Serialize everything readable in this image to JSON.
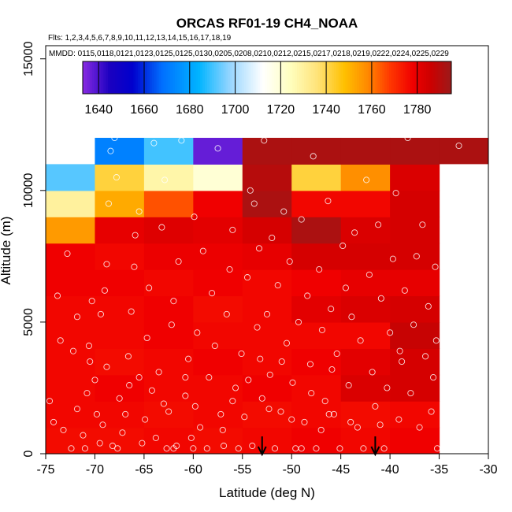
{
  "chart_data": {
    "type": "heatmap",
    "title": "ORCAS RF01-19 CH4_NOAA",
    "flights_line": "Flts: 1,2,3,4,5,6,7,8,9,10,11,12,13,14,15,16,17,18,19",
    "mmdd_line": "MMDD: 0115,0118,0121,0123,0125,0125,0130,0205,0208,0210,0212,0215,0217,0218,0219,0222,0224,0225,0229",
    "xlabel": "Latitude (deg N)",
    "ylabel": "Altitude (m)",
    "xlim": [
      -75,
      -30
    ],
    "ylim": [
      0,
      15500
    ],
    "x_ticks": [
      -75,
      -70,
      -65,
      -60,
      -55,
      -50,
      -45,
      -40,
      -35,
      -30
    ],
    "y_ticks": [
      0,
      5000,
      10000,
      15000
    ],
    "colorbar": {
      "range": [
        1633,
        1795
      ],
      "ticks": [
        1640,
        1660,
        1680,
        1700,
        1720,
        1740,
        1760,
        1780
      ],
      "stops": [
        {
          "v": 1633,
          "c": "#8a2be2"
        },
        {
          "v": 1645,
          "c": "#1a00c0"
        },
        {
          "v": 1655,
          "c": "#0000cd"
        },
        {
          "v": 1668,
          "c": "#0070ff"
        },
        {
          "v": 1684,
          "c": "#00b4ff"
        },
        {
          "v": 1698,
          "c": "#99d6ff"
        },
        {
          "v": 1712,
          "c": "#ffffff"
        },
        {
          "v": 1724,
          "c": "#ffffc0"
        },
        {
          "v": 1736,
          "c": "#ffe37a"
        },
        {
          "v": 1748,
          "c": "#ffc000"
        },
        {
          "v": 1758,
          "c": "#ff8a00"
        },
        {
          "v": 1768,
          "c": "#ff3800"
        },
        {
          "v": 1778,
          "c": "#f00000"
        },
        {
          "v": 1786,
          "c": "#cc0000"
        },
        {
          "v": 1795,
          "c": "#9b1a1a"
        }
      ]
    },
    "lat_edges": [
      -75,
      -70,
      -65,
      -60,
      -55,
      -50,
      -45,
      -40,
      -35
    ],
    "alt_edges": [
      0,
      1000,
      2000,
      3000,
      4000,
      5000,
      6000,
      7000,
      8000,
      9000,
      10000,
      11000,
      12000
    ],
    "cells": [
      [
        1776,
        1776,
        1777,
        1776,
        1777,
        1778,
        1777,
        1778
      ],
      [
        1777,
        1777,
        1776,
        1777,
        1776,
        1777,
        1776,
        1777
      ],
      [
        1777,
        1778,
        1777,
        1777,
        1778,
        1777,
        1783,
        1784
      ],
      [
        1777,
        1776,
        1777,
        1778,
        1777,
        1778,
        1781,
        1784
      ],
      [
        1777,
        1777,
        1778,
        1777,
        1777,
        1777,
        1777,
        1787
      ],
      [
        1777,
        1777,
        1778,
        1776,
        1777,
        1781,
        1783,
        1784
      ],
      [
        1778,
        1778,
        1777,
        1778,
        1777,
        1778,
        1780,
        1780
      ],
      [
        1778,
        1777,
        1779,
        1779,
        1780,
        1784,
        1784,
        1784
      ],
      [
        1755,
        1780,
        1782,
        1781,
        1784,
        1792,
        1783,
        1784
      ],
      [
        1730,
        1752,
        1765,
        1778,
        1792,
        1777,
        1777,
        1784
      ],
      [
        1692,
        1742,
        1728,
        1720,
        1790,
        1742,
        1757,
        1783
      ],
      [
        null,
        1672,
        1690,
        1637,
        1792,
        1792,
        1792,
        1792
      ]
    ],
    "extra_cells": [
      {
        "lat": [
          -35,
          -30
        ],
        "alt": [
          11000,
          12000
        ],
        "value": 1792
      }
    ],
    "points": [
      [
        -74.6,
        2000
      ],
      [
        -74.2,
        1200
      ],
      [
        -73.5,
        4300
      ],
      [
        -73.8,
        6000
      ],
      [
        -72.8,
        7600
      ],
      [
        -72.2,
        3900
      ],
      [
        -71.8,
        5200
      ],
      [
        -72.4,
        200
      ],
      [
        -71.0,
        200
      ],
      [
        -71.2,
        700
      ],
      [
        -70.6,
        4100
      ],
      [
        -70.3,
        5800
      ],
      [
        -70.5,
        3500
      ],
      [
        -70.0,
        2800
      ],
      [
        -69.8,
        1500
      ],
      [
        -69.5,
        400
      ],
      [
        -69.2,
        1100
      ],
      [
        -69.4,
        5300
      ],
      [
        -69.0,
        6200
      ],
      [
        -68.8,
        7200
      ],
      [
        -68.6,
        9500
      ],
      [
        -68.4,
        11500
      ],
      [
        -68.0,
        12000
      ],
      [
        -67.8,
        10500
      ],
      [
        -68.2,
        300
      ],
      [
        -67.7,
        200
      ],
      [
        -67.2,
        800
      ],
      [
        -66.9,
        1500
      ],
      [
        -66.5,
        2600
      ],
      [
        -66.6,
        3700
      ],
      [
        -66.3,
        5400
      ],
      [
        -66.0,
        7100
      ],
      [
        -65.9,
        8300
      ],
      [
        -65.5,
        9200
      ],
      [
        -65.2,
        400
      ],
      [
        -64.9,
        1300
      ],
      [
        -64.7,
        4400
      ],
      [
        -64.5,
        6300
      ],
      [
        -64.2,
        2400
      ],
      [
        -64.0,
        11800
      ],
      [
        -63.8,
        600
      ],
      [
        -63.5,
        3100
      ],
      [
        -63.2,
        8600
      ],
      [
        -62.9,
        10400
      ],
      [
        -62.7,
        200
      ],
      [
        -62.5,
        1600
      ],
      [
        -62.2,
        4900
      ],
      [
        -62.0,
        5800
      ],
      [
        -61.7,
        300
      ],
      [
        -61.5,
        7300
      ],
      [
        -61.2,
        11900
      ],
      [
        -60.8,
        2200
      ],
      [
        -60.5,
        3600
      ],
      [
        -60.2,
        600
      ],
      [
        -59.9,
        9000
      ],
      [
        -59.6,
        4600
      ],
      [
        -59.3,
        1000
      ],
      [
        -59.0,
        7700
      ],
      [
        -58.6,
        200
      ],
      [
        -58.4,
        2900
      ],
      [
        -58.1,
        6100
      ],
      [
        -57.8,
        4100
      ],
      [
        -57.5,
        11600
      ],
      [
        -57.2,
        1500
      ],
      [
        -56.9,
        300
      ],
      [
        -56.6,
        5300
      ],
      [
        -56.3,
        7000
      ],
      [
        -56.0,
        8500
      ],
      [
        -55.7,
        2500
      ],
      [
        -55.4,
        200
      ],
      [
        -55.1,
        3800
      ],
      [
        -54.8,
        1400
      ],
      [
        -54.5,
        6700
      ],
      [
        -54.2,
        10000
      ],
      [
        -54.0,
        300
      ],
      [
        -53.8,
        9500
      ],
      [
        -53.5,
        4800
      ],
      [
        -53.3,
        7800
      ],
      [
        -53.0,
        2100
      ],
      [
        -52.8,
        11900
      ],
      [
        -52.5,
        5300
      ],
      [
        -52.2,
        3000
      ],
      [
        -52.0,
        8200
      ],
      [
        -51.7,
        200
      ],
      [
        -51.4,
        6400
      ],
      [
        -51.1,
        1600
      ],
      [
        -50.8,
        9200
      ],
      [
        -50.5,
        4200
      ],
      [
        -50.2,
        7300
      ],
      [
        -49.9,
        2700
      ],
      [
        -49.6,
        200
      ],
      [
        -49.3,
        5000
      ],
      [
        -49.0,
        8900
      ],
      [
        -48.7,
        1200
      ],
      [
        -48.4,
        6000
      ],
      [
        -48.1,
        3400
      ],
      [
        -47.8,
        11300
      ],
      [
        -47.5,
        200
      ],
      [
        -47.2,
        7000
      ],
      [
        -46.9,
        4700
      ],
      [
        -46.6,
        2000
      ],
      [
        -46.3,
        9600
      ],
      [
        -46.0,
        5500
      ],
      [
        -45.7,
        1500
      ],
      [
        -45.4,
        3800
      ],
      [
        -45.1,
        200
      ],
      [
        -44.8,
        7900
      ],
      [
        -44.5,
        6300
      ],
      [
        -44.2,
        2600
      ],
      [
        -43.9,
        5200
      ],
      [
        -43.6,
        8400
      ],
      [
        -43.3,
        1000
      ],
      [
        -43.0,
        4300
      ],
      [
        -42.7,
        200
      ],
      [
        -42.4,
        10400
      ],
      [
        -42.1,
        6800
      ],
      [
        -41.8,
        3100
      ],
      [
        -41.5,
        1800
      ],
      [
        -41.2,
        8700
      ],
      [
        -40.9,
        5900
      ],
      [
        -40.6,
        200
      ],
      [
        -40.3,
        2500
      ],
      [
        -40.0,
        4600
      ],
      [
        -39.7,
        7400
      ],
      [
        -39.4,
        9900
      ],
      [
        -39.1,
        1300
      ],
      [
        -38.8,
        3500
      ],
      [
        -38.5,
        6200
      ],
      [
        -38.2,
        12000
      ],
      [
        -37.9,
        2300
      ],
      [
        -37.6,
        4900
      ],
      [
        -37.3,
        7500
      ],
      [
        -37.0,
        1000
      ],
      [
        -36.7,
        8700
      ],
      [
        -36.4,
        3700
      ],
      [
        -36.1,
        5600
      ],
      [
        -35.8,
        1600
      ],
      [
        -35.6,
        2900
      ],
      [
        -35.4,
        7100
      ],
      [
        -35.3,
        4300
      ],
      [
        -35.2,
        200
      ],
      [
        -33.0,
        11700
      ],
      [
        -67.5,
        2100
      ],
      [
        -60.8,
        2900
      ],
      [
        -59.8,
        1800
      ],
      [
        -57.0,
        900
      ],
      [
        -54.4,
        2800
      ],
      [
        -53.2,
        3600
      ],
      [
        -52.3,
        1700
      ],
      [
        -51.0,
        3500
      ],
      [
        -48.0,
        2300
      ],
      [
        -47.0,
        900
      ],
      [
        -44.0,
        1200
      ],
      [
        -45.9,
        3200
      ],
      [
        -41.0,
        1100
      ],
      [
        -63.0,
        1900
      ],
      [
        -65.5,
        2900
      ],
      [
        -68.8,
        3300
      ],
      [
        -70.8,
        2300
      ],
      [
        -71.8,
        1700
      ],
      [
        -73.2,
        900
      ],
      [
        -56.0,
        2000
      ],
      [
        -50.0,
        1300
      ],
      [
        -46.2,
        1500
      ],
      [
        -39.0,
        3900
      ],
      [
        -62.0,
        200
      ],
      [
        -60.0,
        200
      ],
      [
        -49.0,
        200
      ]
    ],
    "arrows_lat": [
      -53,
      -41.5
    ]
  }
}
